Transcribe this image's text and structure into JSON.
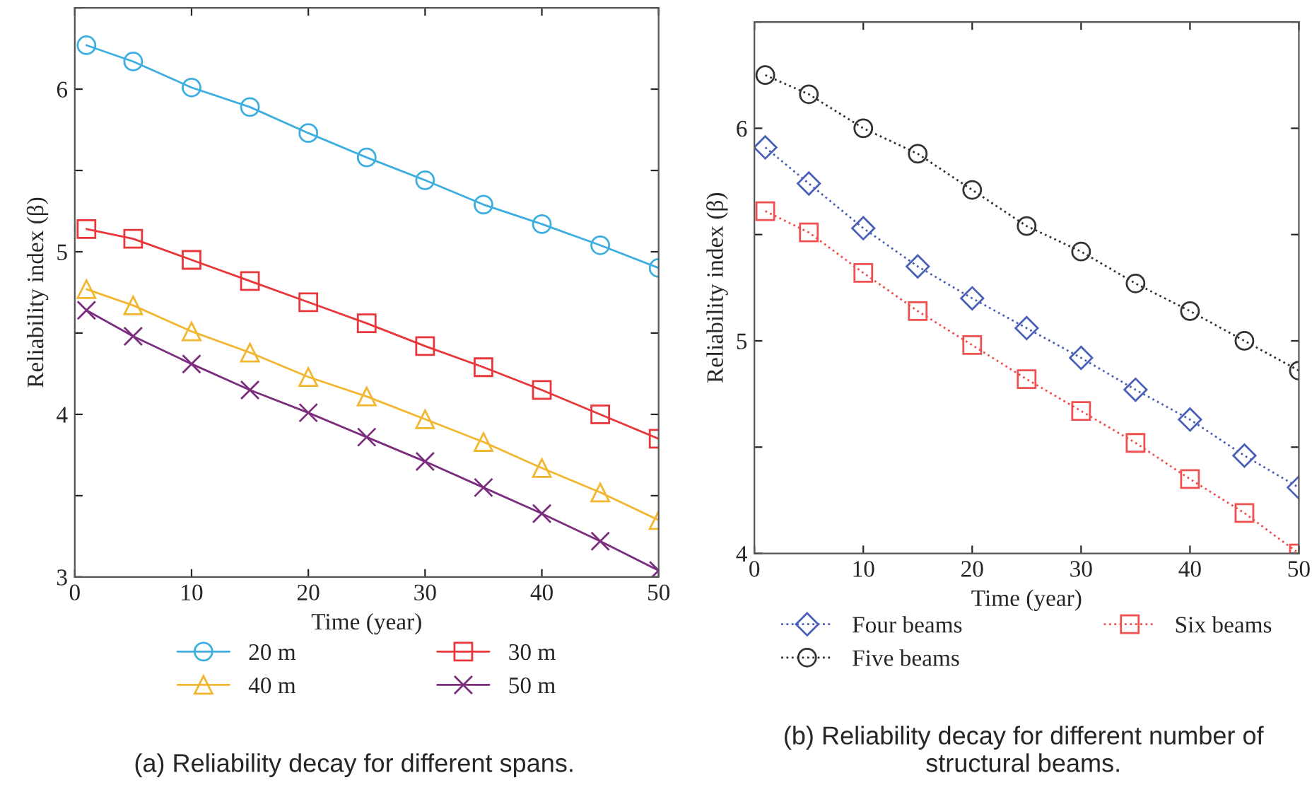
{
  "chart_data": [
    {
      "type": "line",
      "xlabel": "Time (year)",
      "ylabel": "Reliability index (β)",
      "x": [
        1,
        5,
        10,
        15,
        20,
        25,
        30,
        35,
        40,
        45,
        50
      ],
      "xlim": [
        0,
        50
      ],
      "ylim": [
        3,
        6.5
      ],
      "xticks": [
        0,
        10,
        20,
        30,
        40,
        50
      ],
      "yticks": [
        3,
        {
          "value": 3.5,
          "label": null
        },
        4,
        {
          "value": 4.5,
          "label": null
        },
        5,
        {
          "value": 5.5,
          "label": null
        },
        6,
        {
          "value": 6.5,
          "label": null
        }
      ],
      "grid": false,
      "legend": "bottom",
      "line_style": "solid",
      "annotations": [
        "(a) Reliability decay for different spans."
      ],
      "series": [
        {
          "name": "20 m",
          "color": "#3daee0",
          "marker": "circle",
          "values": [
            6.27,
            6.17,
            6.01,
            5.89,
            5.73,
            5.58,
            5.44,
            5.29,
            5.17,
            5.04,
            4.9
          ]
        },
        {
          "name": "30 m",
          "color": "#e8363a",
          "marker": "square",
          "values": [
            5.14,
            5.08,
            4.95,
            4.82,
            4.69,
            4.56,
            4.42,
            4.29,
            4.15,
            4.0,
            3.85
          ]
        },
        {
          "name": "40 m",
          "color": "#f2b630",
          "marker": "triangle",
          "values": [
            4.77,
            4.67,
            4.51,
            4.38,
            4.23,
            4.11,
            3.97,
            3.83,
            3.67,
            3.52,
            3.35
          ]
        },
        {
          "name": "50 m",
          "color": "#7b2d7e",
          "marker": "cross",
          "values": [
            4.64,
            4.48,
            4.31,
            4.15,
            4.01,
            3.86,
            3.71,
            3.55,
            3.39,
            3.22,
            3.04
          ]
        }
      ]
    },
    {
      "type": "line",
      "xlabel": "Time (year)",
      "ylabel": "Reliability index (β)",
      "x": [
        1,
        5,
        10,
        15,
        20,
        25,
        30,
        35,
        40,
        45,
        50
      ],
      "xlim": [
        0,
        50
      ],
      "ylim": [
        4,
        6.5
      ],
      "xticks": [
        0,
        10,
        20,
        30,
        40,
        50
      ],
      "yticks": [
        4,
        {
          "value": 4.5,
          "label": null
        },
        5,
        {
          "value": 5.5,
          "label": null
        },
        6,
        {
          "value": 6.5,
          "label": null
        }
      ],
      "grid": false,
      "legend": "bottom",
      "line_style": "dotted",
      "annotations": [
        "(b) Reliability decay for different number of structural beams."
      ],
      "series": [
        {
          "name": "Four beams",
          "color": "#4a5fb8",
          "marker": "diamond",
          "values": [
            5.91,
            5.74,
            5.53,
            5.35,
            5.2,
            5.06,
            4.92,
            4.77,
            4.63,
            4.46,
            4.31
          ]
        },
        {
          "name": "Six beams",
          "color": "#f05050",
          "marker": "square",
          "values": [
            5.61,
            5.51,
            5.32,
            5.14,
            4.98,
            4.82,
            4.67,
            4.52,
            4.35,
            4.19,
            4.0
          ]
        },
        {
          "name": "Five beams",
          "color": "#333333",
          "marker": "circle",
          "values": [
            6.25,
            6.16,
            6.0,
            5.88,
            5.71,
            5.54,
            5.42,
            5.27,
            5.14,
            5.0,
            4.86
          ]
        }
      ]
    }
  ]
}
